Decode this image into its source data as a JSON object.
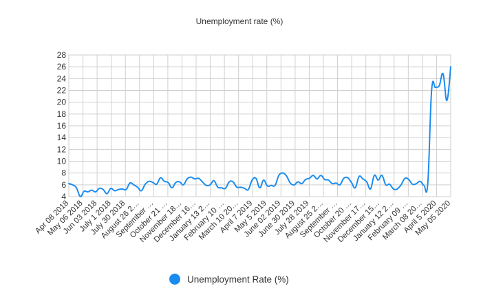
{
  "chart_data": {
    "type": "line",
    "title": "Unemployment rate (%)",
    "xlabel": "",
    "ylabel": "",
    "ylim": [
      4,
      28
    ],
    "yticks": [
      4,
      6,
      8,
      10,
      12,
      14,
      16,
      18,
      20,
      22,
      24,
      26,
      28
    ],
    "grid": true,
    "legend_position": "bottom",
    "color": "#1a8cf0",
    "x_tick_labels": [
      "Apr 08 2018",
      "May 06 2018",
      "Jun 03 2018",
      "July 1 2018",
      "July 30 2018",
      "August 26 2…",
      "September …",
      "October 21 …",
      "November 18…",
      "December 16…",
      "January 13 2…",
      "February 10 …",
      "March 10 20…",
      "April 7 2019",
      "May 5 2019",
      "June 02 2019",
      "June 30 2019",
      "July 28 2019",
      "August 25 2…",
      "September …",
      "October 20 …",
      "November 17…",
      "December 15…",
      "January 12 2…",
      "February 09 …",
      "March 08 20…",
      "April 5 2020",
      "May 05 2020"
    ],
    "series": [
      {
        "name": "Unemployment Rate (%)",
        "values": [
          6.2,
          6.0,
          5.5,
          4.0,
          4.9,
          4.8,
          5.1,
          4.8,
          5.4,
          5.2,
          4.5,
          5.4,
          5.0,
          5.2,
          5.3,
          5.2,
          6.3,
          6.0,
          5.6,
          5.0,
          6.1,
          6.6,
          6.4,
          6.1,
          7.2,
          6.6,
          6.4,
          5.5,
          6.4,
          6.5,
          6.0,
          7.0,
          7.3,
          7.0,
          7.1,
          6.5,
          5.9,
          6.0,
          6.7,
          5.6,
          5.5,
          5.4,
          6.5,
          6.5,
          5.6,
          5.6,
          5.4,
          5.2,
          6.8,
          7.1,
          5.5,
          6.8,
          5.8,
          5.9,
          5.9,
          7.6,
          8.0,
          7.5,
          6.3,
          6.0,
          6.5,
          6.2,
          6.9,
          7.1,
          7.6,
          7.0,
          7.6,
          6.9,
          6.8,
          6.2,
          6.3,
          6.0,
          7.1,
          7.2,
          6.4,
          5.5,
          7.4,
          7.0,
          6.5,
          5.3,
          7.6,
          6.8,
          7.6,
          6.0,
          6.1,
          5.3,
          5.3,
          6.0,
          7.1,
          6.9,
          6.1,
          6.2,
          6.6,
          5.9,
          6.3,
          22.0,
          22.5,
          22.8,
          24.8,
          20.3,
          26.0
        ]
      }
    ]
  }
}
